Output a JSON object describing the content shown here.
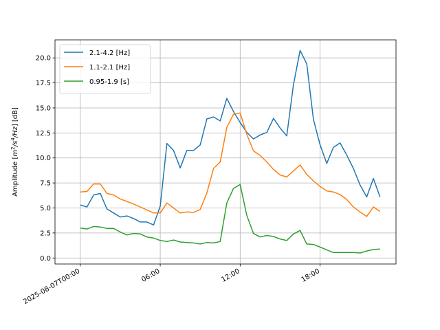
{
  "chart_data": {
    "type": "line",
    "ylabel_prefix": "Amplitude [",
    "ylabel_unit": "m",
    "ylabel_unit_sup1": "2",
    "ylabel_unit_mid": "/s",
    "ylabel_unit_sup2": "4",
    "ylabel_unit_end": "/Hz",
    "ylabel_suffix": "] [dB]",
    "xlabel": "",
    "title": "",
    "x_unit": "hours since 2025-08-07T00:00",
    "xlim": [
      -1.9,
      23.7
    ],
    "ylim": [
      -0.6,
      21.8
    ],
    "grid": true,
    "legend_position": "upper-left",
    "x_ticks": [
      {
        "value": 0,
        "label": "2025-08-07T00:00"
      },
      {
        "value": 6,
        "label": "06:00"
      },
      {
        "value": 12,
        "label": "12:00"
      },
      {
        "value": 18,
        "label": "18:00"
      }
    ],
    "y_ticks": [
      {
        "value": 0.0,
        "label": "0.0"
      },
      {
        "value": 2.5,
        "label": "2.5"
      },
      {
        "value": 5.0,
        "label": "5.0"
      },
      {
        "value": 7.5,
        "label": "7.5"
      },
      {
        "value": 10.0,
        "label": "10.0"
      },
      {
        "value": 12.5,
        "label": "12.5"
      },
      {
        "value": 15.0,
        "label": "15.0"
      },
      {
        "value": 17.5,
        "label": "17.5"
      },
      {
        "value": 20.0,
        "label": "20.0"
      }
    ],
    "x": [
      0.0,
      0.5,
      1.0,
      1.5,
      2.0,
      2.5,
      3.0,
      3.5,
      4.0,
      4.5,
      5.0,
      5.5,
      6.0,
      6.5,
      7.0,
      7.5,
      8.0,
      8.5,
      9.0,
      9.5,
      10.0,
      10.5,
      11.0,
      11.5,
      12.0,
      12.5,
      13.0,
      13.5,
      14.0,
      14.5,
      15.0,
      15.5,
      16.0,
      16.5,
      17.0,
      17.5,
      18.0,
      18.5,
      19.0,
      19.5,
      20.0,
      20.5,
      21.0,
      21.5,
      22.0,
      22.5
    ],
    "series": [
      {
        "name": "2.1-4.2 [Hz]",
        "color": "#1f77b4",
        "values": [
          5.3,
          5.1,
          6.3,
          6.45,
          4.9,
          4.5,
          4.1,
          4.2,
          3.95,
          3.6,
          3.6,
          3.3,
          5.2,
          11.45,
          10.75,
          9.0,
          10.75,
          10.75,
          11.3,
          13.9,
          14.1,
          13.7,
          15.95,
          14.65,
          13.55,
          12.55,
          11.9,
          12.3,
          12.55,
          13.95,
          13.0,
          12.2,
          17.3,
          20.75,
          19.4,
          13.85,
          11.3,
          9.45,
          11.05,
          11.5,
          10.3,
          8.95,
          7.3,
          6.1,
          7.95,
          6.1
        ]
      },
      {
        "name": "1.1-2.1 [Hz]",
        "color": "#ff7f0e",
        "values": [
          6.6,
          6.65,
          7.4,
          7.4,
          6.45,
          6.3,
          5.9,
          5.65,
          5.4,
          5.1,
          4.8,
          4.5,
          4.5,
          5.5,
          5.0,
          4.5,
          4.6,
          4.55,
          4.85,
          6.5,
          8.95,
          9.6,
          13.05,
          14.35,
          14.5,
          12.35,
          10.7,
          10.25,
          9.6,
          8.85,
          8.3,
          8.1,
          8.7,
          9.3,
          8.35,
          7.7,
          7.15,
          6.7,
          6.6,
          6.35,
          5.85,
          5.1,
          4.6,
          4.15,
          5.1,
          4.65
        ]
      },
      {
        "name": "0.95-1.9 [s]",
        "color": "#2ca02c",
        "values": [
          3.0,
          2.9,
          3.15,
          3.1,
          2.95,
          2.95,
          2.6,
          2.3,
          2.45,
          2.4,
          2.1,
          2.0,
          1.75,
          1.65,
          1.8,
          1.6,
          1.55,
          1.5,
          1.4,
          1.55,
          1.5,
          1.65,
          5.5,
          6.95,
          7.35,
          4.25,
          2.45,
          2.1,
          2.25,
          2.15,
          1.9,
          1.75,
          2.4,
          2.75,
          1.4,
          1.35,
          1.1,
          0.8,
          0.55,
          0.55,
          0.55,
          0.55,
          0.5,
          0.7,
          0.85,
          0.9
        ]
      }
    ]
  }
}
